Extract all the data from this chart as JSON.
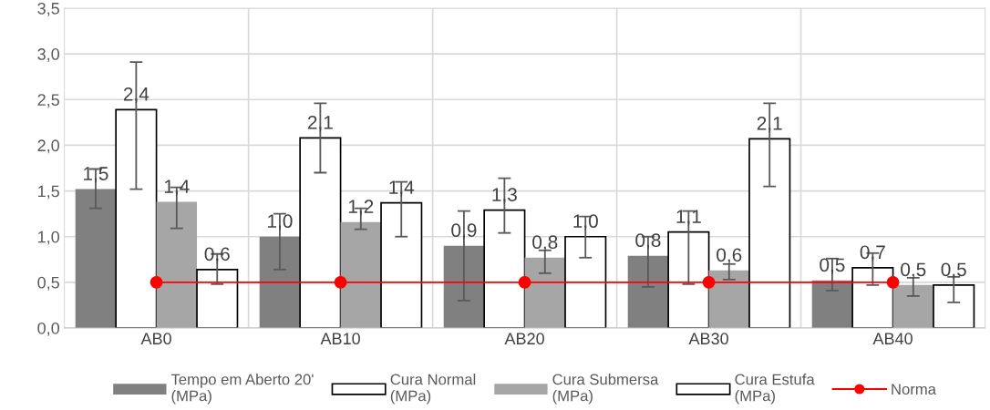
{
  "chart_data": {
    "type": "bar",
    "categories": [
      "AB0",
      "AB10",
      "AB20",
      "AB30",
      "AB40"
    ],
    "series": [
      {
        "name": "Tempo em Aberto 20'\n(MPa)",
        "color": "#808080",
        "values": [
          1.52,
          1.0,
          0.9,
          0.79,
          0.52
        ],
        "errors": [
          [
            1.31,
            1.74
          ],
          [
            0.64,
            1.25
          ],
          [
            0.3,
            1.28
          ],
          [
            0.45,
            1.0
          ],
          [
            0.41,
            0.76
          ]
        ],
        "value_labels": [
          "1,5",
          "1,0",
          "0,9",
          "0,8",
          "0,5"
        ]
      },
      {
        "name": "Cura Normal\n(MPa)",
        "color": "#ffffff",
        "values": [
          2.39,
          2.08,
          1.29,
          1.05,
          0.66
        ],
        "errors": [
          [
            1.52,
            2.91
          ],
          [
            1.7,
            2.46
          ],
          [
            1.04,
            1.64
          ],
          [
            0.48,
            1.28
          ],
          [
            0.47,
            0.82
          ]
        ],
        "value_labels": [
          "2,4",
          "2,1",
          "1,3",
          "1,1",
          "0,7"
        ]
      },
      {
        "name": "Cura Submersa\n(MPa)",
        "color": "#a6a6a6",
        "values": [
          1.38,
          1.16,
          0.77,
          0.63,
          0.47
        ],
        "errors": [
          [
            1.09,
            1.54
          ],
          [
            1.08,
            1.31
          ],
          [
            0.6,
            0.85
          ],
          [
            0.53,
            0.7
          ],
          [
            0.35,
            0.55
          ]
        ],
        "value_labels": [
          "1,4",
          "1,2",
          "0,8",
          "0,6",
          "0,5"
        ]
      },
      {
        "name": "Cura Estufa\n(MPa)",
        "color": "#ffffff",
        "values": [
          0.64,
          1.37,
          1.0,
          2.07,
          0.47
        ],
        "errors": [
          [
            0.48,
            0.81
          ],
          [
            1.0,
            1.6
          ],
          [
            0.77,
            1.22
          ],
          [
            1.55,
            2.46
          ],
          [
            0.28,
            0.56
          ]
        ],
        "value_labels": [
          "0,6",
          "1,4",
          "1,0",
          "2,1",
          "0,5"
        ]
      },
      {
        "name": "Norma",
        "type": "line",
        "color": "#ff0000",
        "marker": "circle",
        "values": [
          0.5,
          0.5,
          0.5,
          0.5,
          0.5
        ]
      }
    ],
    "ylim": [
      0,
      3.5
    ],
    "yticks": [
      {
        "value": 0,
        "label": "0,0"
      },
      {
        "value": 0.5,
        "label": "0,5"
      },
      {
        "value": 1,
        "label": "1,0"
      },
      {
        "value": 1.5,
        "label": "1,5"
      },
      {
        "value": 2,
        "label": "2,0"
      },
      {
        "value": 2.5,
        "label": "2,5"
      },
      {
        "value": 3,
        "label": "3,0"
      },
      {
        "value": 3.5,
        "label": "3,5"
      }
    ],
    "grid": true,
    "legend": "bottom"
  }
}
